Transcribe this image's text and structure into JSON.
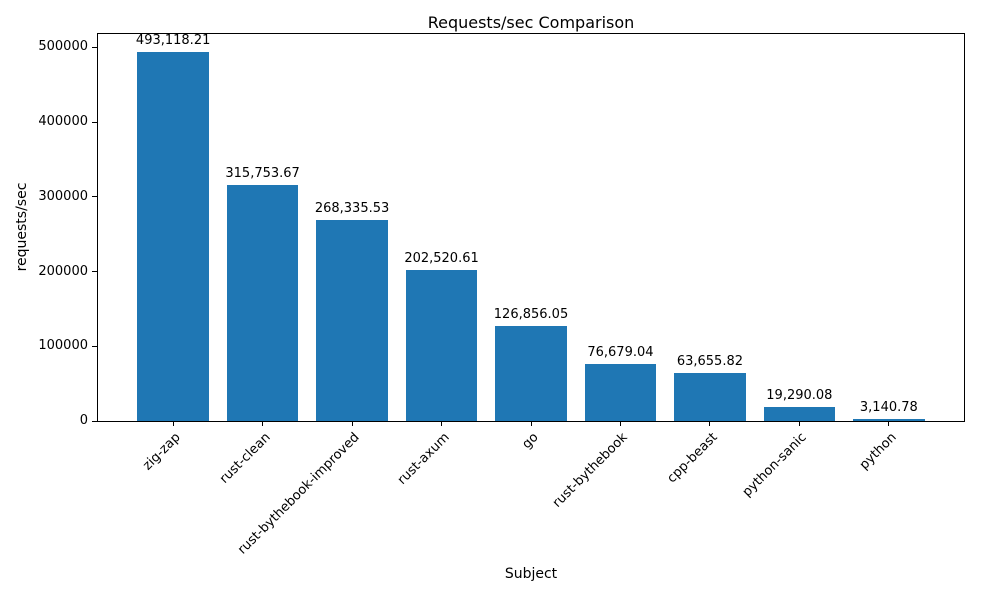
{
  "chart_data": {
    "type": "bar",
    "title": "Requests/sec Comparison",
    "xlabel": "Subject",
    "ylabel": "requests/sec",
    "categories": [
      "zig-zap",
      "rust-clean",
      "rust-bythebook-improved",
      "rust-axum",
      "go",
      "rust-bythebook",
      "cpp-beast",
      "python-sanic",
      "python"
    ],
    "values": [
      493118.21,
      315753.67,
      268335.53,
      202520.61,
      126856.05,
      76679.04,
      63655.82,
      19290.08,
      3140.78
    ],
    "value_labels": [
      "493,118.21",
      "315,753.67",
      "268,335.53",
      "202,520.61",
      "126,856.05",
      "76,679.04",
      "63,655.82",
      "19,290.08",
      "3,140.78"
    ],
    "bar_color": "#1f77b4",
    "text_color": "#000000",
    "ylim": [
      0,
      517774
    ],
    "xlim": [
      -0.84,
      8.84
    ],
    "yticks": [
      0,
      100000,
      200000,
      300000,
      400000,
      500000
    ],
    "grid": false,
    "legend": null,
    "bar_width_data_units": 0.8
  }
}
